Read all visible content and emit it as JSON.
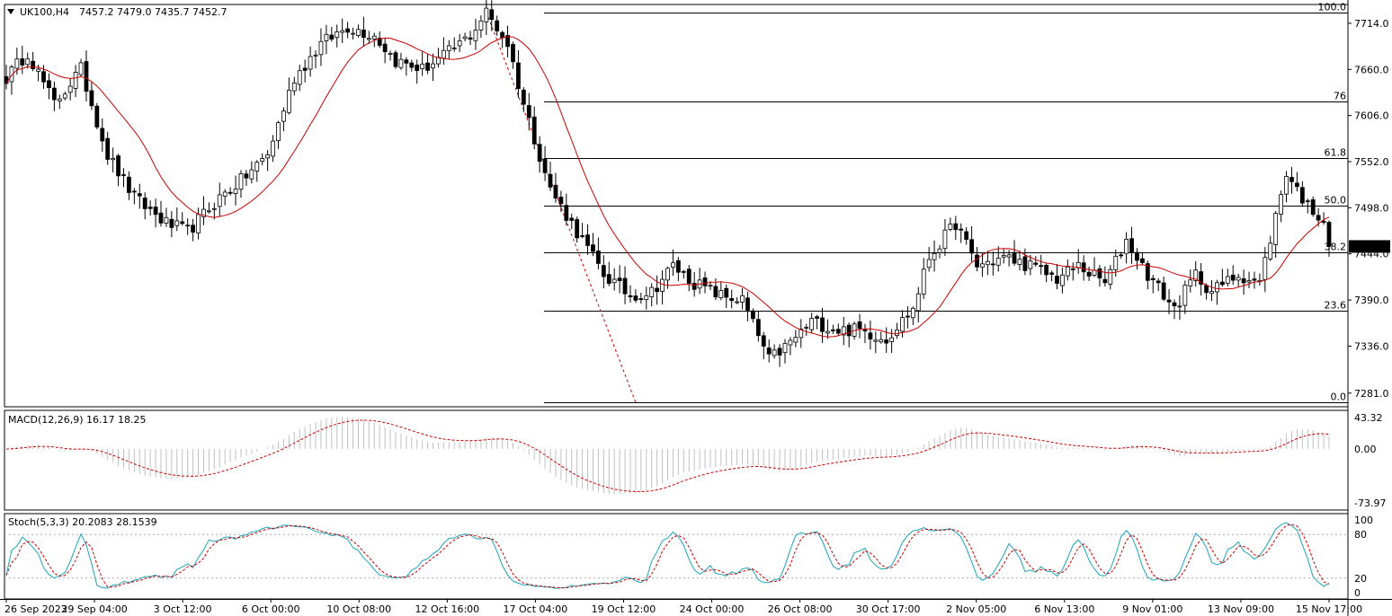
{
  "header": {
    "symbol_tf": "UK100,H4",
    "ohlc": "7457.2 7479.0 7435.7 7452.7"
  },
  "price_badge": "7452.7",
  "macd": {
    "label": "MACD(12,26,9) 16.17 18.25",
    "ticks": [
      "43.32",
      "0.00",
      "-73.97"
    ],
    "ticks_values": [
      43.32,
      0,
      -73.97
    ]
  },
  "stoch": {
    "label": "Stoch(5,3,3) 20.2083 28.1539",
    "ticks": [
      "100",
      "80",
      "20",
      "0"
    ],
    "ticks_values": [
      100,
      80,
      20,
      0
    ]
  },
  "chart_data": {
    "type": "candlestick",
    "ylim": [
      7265,
      7736
    ],
    "price_ticks": [
      "7714.0",
      "7660.0",
      "7606.0",
      "7552.0",
      "7498.0",
      "7444.0",
      "7390.0",
      "7336.0",
      "7281.0"
    ],
    "price_ticks_values": [
      7714,
      7660,
      7606,
      7552,
      7498,
      7444,
      7390,
      7336,
      7281
    ],
    "fib_levels": [
      {
        "label": "100.0",
        "price": 7727
      },
      {
        "label": "76",
        "price": 7622
      },
      {
        "label": "61.8",
        "price": 7556
      },
      {
        "label": "50.0",
        "price": 7501
      },
      {
        "label": "38.2",
        "price": 7446
      },
      {
        "label": "23.6",
        "price": 7378
      },
      {
        "label": "0.0",
        "price": 7270
      }
    ],
    "time_labels": [
      "26 Sep 2023",
      "29 Sep 04:00",
      "3 Oct 12:00",
      "6 Oct 00:00",
      "10 Oct 08:00",
      "12 Oct 16:00",
      "17 Oct 04:00",
      "19 Oct 12:00",
      "24 Oct 00:00",
      "26 Oct 08:00",
      "30 Oct 17:00",
      "2 Nov 05:00",
      "6 Nov 13:00",
      "9 Nov 01:00",
      "13 Nov 09:00",
      "15 Nov 17:00"
    ],
    "price_keypoints": [
      [
        0,
        7650
      ],
      [
        4,
        7680
      ],
      [
        9,
        7620
      ],
      [
        14,
        7660
      ],
      [
        19,
        7560
      ],
      [
        24,
        7510
      ],
      [
        30,
        7480
      ],
      [
        34,
        7470
      ],
      [
        40,
        7510
      ],
      [
        44,
        7530
      ],
      [
        49,
        7560
      ],
      [
        54,
        7650
      ],
      [
        59,
        7690
      ],
      [
        64,
        7710
      ],
      [
        69,
        7700
      ],
      [
        73,
        7670
      ],
      [
        78,
        7660
      ],
      [
        83,
        7680
      ],
      [
        87,
        7700
      ],
      [
        90,
        7727
      ],
      [
        94,
        7690
      ],
      [
        97,
        7620
      ],
      [
        102,
        7520
      ],
      [
        107,
        7470
      ],
      [
        112,
        7420
      ],
      [
        117,
        7395
      ],
      [
        121,
        7400
      ],
      [
        125,
        7430
      ],
      [
        129,
        7410
      ],
      [
        134,
        7395
      ],
      [
        138,
        7390
      ],
      [
        143,
        7320
      ],
      [
        147,
        7340
      ],
      [
        151,
        7365
      ],
      [
        156,
        7355
      ],
      [
        160,
        7355
      ],
      [
        165,
        7345
      ],
      [
        170,
        7380
      ],
      [
        173,
        7440
      ],
      [
        178,
        7480
      ],
      [
        182,
        7430
      ],
      [
        187,
        7440
      ],
      [
        192,
        7430
      ],
      [
        197,
        7415
      ],
      [
        201,
        7430
      ],
      [
        206,
        7410
      ],
      [
        210,
        7460
      ],
      [
        214,
        7420
      ],
      [
        219,
        7380
      ],
      [
        223,
        7420
      ],
      [
        226,
        7400
      ],
      [
        231,
        7420
      ],
      [
        235,
        7410
      ],
      [
        240,
        7540
      ],
      [
        244,
        7500
      ],
      [
        247,
        7485
      ],
      [
        248,
        7452.7
      ]
    ],
    "dashed_trendline": [
      [
        90,
        7727
      ],
      [
        118,
        7270
      ]
    ],
    "series": [
      {
        "name": "MA",
        "type": "moving-average",
        "color": "#cc0000"
      },
      {
        "name": "MACD",
        "color": "#c0c0c0"
      },
      {
        "name": "Signal",
        "color": "#cc0000"
      },
      {
        "name": "%K",
        "color": "#1ca3b8"
      },
      {
        "name": "%D",
        "color": "#cc0000"
      }
    ]
  }
}
